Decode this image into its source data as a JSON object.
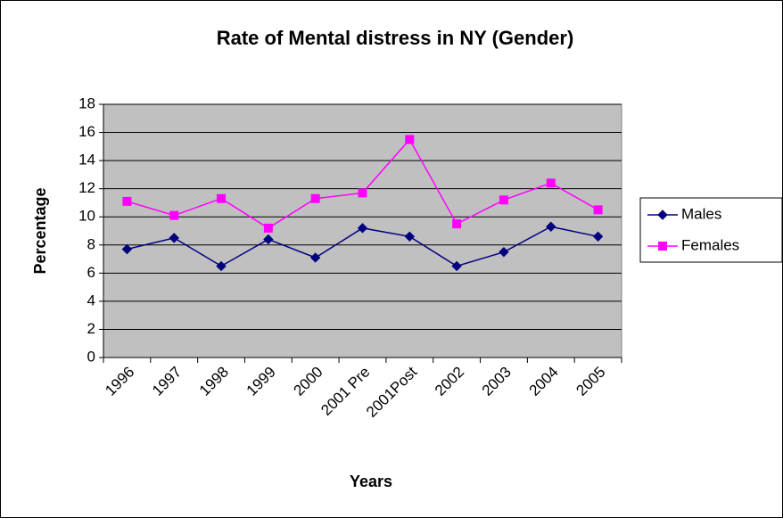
{
  "chart_data": {
    "type": "line",
    "title": "Rate of Mental distress in NY (Gender)",
    "x_label": "Years",
    "y_label": "Percentage",
    "categories": [
      "1996",
      "1997",
      "1998",
      "1999",
      "2000",
      "2001 Pre",
      "2001Post",
      "2002",
      "2003",
      "2004",
      "2005"
    ],
    "series": [
      {
        "name": "Males",
        "color": "#000080",
        "marker": "diamond",
        "values": [
          7.7,
          8.5,
          6.5,
          8.4,
          7.1,
          9.2,
          8.6,
          6.5,
          7.5,
          9.3,
          8.6
        ]
      },
      {
        "name": "Females",
        "color": "#ff00ff",
        "marker": "square",
        "values": [
          11.1,
          10.1,
          11.3,
          9.2,
          11.3,
          11.7,
          15.5,
          9.5,
          11.2,
          12.4,
          10.5
        ]
      }
    ],
    "ylim": [
      0,
      18
    ],
    "yticks": [
      0,
      2,
      4,
      6,
      8,
      10,
      12,
      14,
      16,
      18
    ],
    "grid": true,
    "legend": "right"
  }
}
